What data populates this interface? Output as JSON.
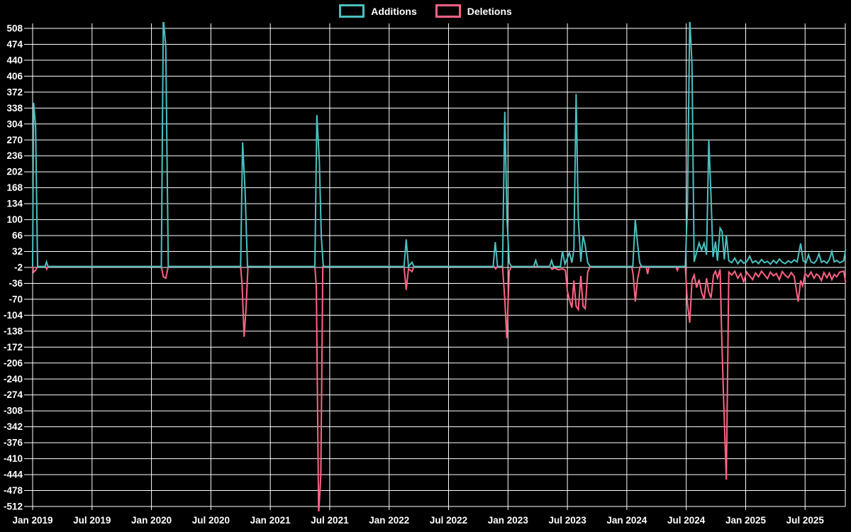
{
  "chart_data": {
    "type": "line",
    "title": "",
    "legend_position": "top",
    "background_color": "#000000",
    "grid_color": "#ffffff",
    "text_color": "#ffffff",
    "grid": true,
    "x_unit": "months since Jan 2019 (weekly git additions/deletions)",
    "x_tick_labels": [
      "Jan 2019",
      "Jul 2019",
      "Jan 2020",
      "Jul 2020",
      "Jan 2021",
      "Jul 2021",
      "Jan 2022",
      "Jul 2022",
      "Jan 2023",
      "Jul 2023",
      "Jan 2024",
      "Jul 2024",
      "Jan 2025",
      "Jul 2025"
    ],
    "x_tick_months": [
      0,
      6,
      12,
      18,
      24,
      30,
      36,
      42,
      48,
      54,
      60,
      66,
      72,
      78
    ],
    "y_ticks": [
      508,
      474,
      440,
      406,
      372,
      338,
      304,
      270,
      236,
      202,
      168,
      134,
      100,
      66,
      32,
      -2,
      -36,
      -70,
      -104,
      -138,
      -172,
      -206,
      -240,
      -274,
      -308,
      -342,
      -376,
      -410,
      -444,
      -478,
      -512
    ],
    "xlim": [
      -0.43,
      82.35
    ],
    "ylim": [
      -522.6,
      518.6
    ],
    "series": [
      {
        "name": "Deletions",
        "color": "#ff6384",
        "points": [
          [
            0.0,
            0
          ],
          [
            0.1,
            -12
          ],
          [
            0.3,
            -8
          ],
          [
            0.5,
            0
          ],
          [
            1.3,
            0
          ],
          [
            1.42,
            -6
          ],
          [
            1.55,
            0
          ],
          [
            13.0,
            0
          ],
          [
            13.2,
            -22
          ],
          [
            13.45,
            -25
          ],
          [
            13.7,
            0
          ],
          [
            21.0,
            0
          ],
          [
            21.15,
            -40
          ],
          [
            21.35,
            -150
          ],
          [
            21.55,
            -90
          ],
          [
            21.75,
            0
          ],
          [
            28.5,
            0
          ],
          [
            28.65,
            -45
          ],
          [
            28.88,
            -530
          ],
          [
            29.1,
            -445
          ],
          [
            29.3,
            0
          ],
          [
            37.5,
            0
          ],
          [
            37.72,
            -50
          ],
          [
            37.95,
            -5
          ],
          [
            38.3,
            -11
          ],
          [
            38.5,
            0
          ],
          [
            46.6,
            0
          ],
          [
            46.75,
            -5
          ],
          [
            46.9,
            0
          ],
          [
            47.45,
            0
          ],
          [
            47.68,
            -70
          ],
          [
            47.88,
            -153
          ],
          [
            48.13,
            -10
          ],
          [
            48.35,
            0
          ],
          [
            52.2,
            0
          ],
          [
            52.45,
            -6
          ],
          [
            52.7,
            -3
          ],
          [
            53.1,
            -7
          ],
          [
            53.5,
            -5
          ],
          [
            53.8,
            -8
          ],
          [
            54.0,
            -53
          ],
          [
            54.2,
            -71
          ],
          [
            54.45,
            -88
          ],
          [
            54.65,
            -30
          ],
          [
            54.88,
            -85
          ],
          [
            55.1,
            -92
          ],
          [
            55.35,
            -20
          ],
          [
            55.58,
            -85
          ],
          [
            55.8,
            -90
          ],
          [
            56.05,
            -12
          ],
          [
            56.3,
            0
          ],
          [
            60.5,
            0
          ],
          [
            60.65,
            -20
          ],
          [
            60.85,
            -75
          ],
          [
            61.1,
            -25
          ],
          [
            61.35,
            0
          ],
          [
            61.95,
            0
          ],
          [
            62.1,
            -16
          ],
          [
            62.25,
            0
          ],
          [
            64.95,
            0
          ],
          [
            65.1,
            -8
          ],
          [
            65.25,
            0
          ],
          [
            65.9,
            0
          ],
          [
            66.12,
            -79
          ],
          [
            66.35,
            -120
          ],
          [
            66.58,
            -30
          ],
          [
            66.8,
            -18
          ],
          [
            67.05,
            -45
          ],
          [
            67.3,
            -28
          ],
          [
            67.55,
            -55
          ],
          [
            67.8,
            -70
          ],
          [
            68.05,
            -25
          ],
          [
            68.28,
            -55
          ],
          [
            68.5,
            -67
          ],
          [
            68.75,
            -18
          ],
          [
            68.95,
            -10
          ],
          [
            69.15,
            -25
          ],
          [
            69.42,
            -6
          ],
          [
            69.6,
            -160
          ],
          [
            69.8,
            -300
          ],
          [
            70.05,
            -455
          ],
          [
            70.3,
            -12
          ],
          [
            70.6,
            -18
          ],
          [
            70.9,
            -10
          ],
          [
            71.2,
            -25
          ],
          [
            71.5,
            -15
          ],
          [
            71.8,
            -33
          ],
          [
            72.1,
            -12
          ],
          [
            72.4,
            -20
          ],
          [
            72.7,
            -28
          ],
          [
            73.0,
            -14
          ],
          [
            73.3,
            -22
          ],
          [
            73.6,
            -10
          ],
          [
            73.9,
            -18
          ],
          [
            74.2,
            -26
          ],
          [
            74.5,
            -12
          ],
          [
            74.8,
            -20
          ],
          [
            75.1,
            -15
          ],
          [
            75.4,
            -28
          ],
          [
            75.7,
            -11
          ],
          [
            76.0,
            -19
          ],
          [
            76.3,
            -24
          ],
          [
            76.6,
            -13
          ],
          [
            76.9,
            -21
          ],
          [
            77.3,
            -75
          ],
          [
            77.55,
            -30
          ],
          [
            77.75,
            -41
          ],
          [
            78.0,
            -15
          ],
          [
            78.3,
            -22
          ],
          [
            78.6,
            -12
          ],
          [
            78.9,
            -25
          ],
          [
            79.15,
            -16
          ],
          [
            79.4,
            -20
          ],
          [
            79.65,
            -30
          ],
          [
            79.9,
            -13
          ],
          [
            80.2,
            -24
          ],
          [
            80.45,
            -14
          ],
          [
            80.7,
            -28
          ],
          [
            80.95,
            -17
          ],
          [
            81.2,
            -22
          ],
          [
            81.5,
            -12
          ],
          [
            81.9,
            -10
          ],
          [
            82.1,
            -35
          ]
        ]
      },
      {
        "name": "Additions",
        "color": "#4bc0c0",
        "points": [
          [
            0.0,
            0
          ],
          [
            0.1,
            349
          ],
          [
            0.3,
            300
          ],
          [
            0.5,
            0
          ],
          [
            1.25,
            0
          ],
          [
            1.4,
            10
          ],
          [
            1.55,
            0
          ],
          [
            13.0,
            0
          ],
          [
            13.2,
            530
          ],
          [
            13.45,
            468
          ],
          [
            13.7,
            0
          ],
          [
            21.0,
            0
          ],
          [
            21.2,
            265
          ],
          [
            21.45,
            165
          ],
          [
            21.7,
            0
          ],
          [
            28.5,
            0
          ],
          [
            28.7,
            323
          ],
          [
            28.95,
            225
          ],
          [
            29.15,
            63
          ],
          [
            29.35,
            0
          ],
          [
            37.5,
            0
          ],
          [
            37.72,
            58
          ],
          [
            37.95,
            0
          ],
          [
            38.3,
            9
          ],
          [
            38.5,
            0
          ],
          [
            46.5,
            0
          ],
          [
            46.72,
            52
          ],
          [
            46.95,
            0
          ],
          [
            47.45,
            0
          ],
          [
            47.68,
            330
          ],
          [
            47.9,
            100
          ],
          [
            48.13,
            8
          ],
          [
            48.35,
            0
          ],
          [
            50.6,
            0
          ],
          [
            50.8,
            13
          ],
          [
            51.0,
            0
          ],
          [
            52.2,
            0
          ],
          [
            52.4,
            13
          ],
          [
            52.6,
            0
          ],
          [
            53.3,
            0
          ],
          [
            53.5,
            33
          ],
          [
            53.75,
            5
          ],
          [
            54.0,
            18
          ],
          [
            54.2,
            30
          ],
          [
            54.45,
            8
          ],
          [
            54.65,
            35
          ],
          [
            54.88,
            368
          ],
          [
            55.1,
            100
          ],
          [
            55.35,
            10
          ],
          [
            55.58,
            66
          ],
          [
            55.8,
            45
          ],
          [
            56.05,
            8
          ],
          [
            56.3,
            0
          ],
          [
            60.6,
            0
          ],
          [
            60.85,
            100
          ],
          [
            61.05,
            55
          ],
          [
            61.3,
            8
          ],
          [
            61.5,
            0
          ],
          [
            65.9,
            0
          ],
          [
            66.12,
            130
          ],
          [
            66.35,
            530
          ],
          [
            66.58,
            430
          ],
          [
            66.8,
            10
          ],
          [
            67.05,
            30
          ],
          [
            67.3,
            50
          ],
          [
            67.55,
            35
          ],
          [
            67.8,
            50
          ],
          [
            68.05,
            25
          ],
          [
            68.28,
            270
          ],
          [
            68.5,
            150
          ],
          [
            68.7,
            20
          ],
          [
            68.95,
            53
          ],
          [
            69.15,
            12
          ],
          [
            69.42,
            82
          ],
          [
            69.62,
            75
          ],
          [
            69.85,
            15
          ],
          [
            70.05,
            65
          ],
          [
            70.3,
            12
          ],
          [
            70.6,
            8
          ],
          [
            70.9,
            18
          ],
          [
            71.2,
            6
          ],
          [
            71.5,
            14
          ],
          [
            71.8,
            7
          ],
          [
            72.1,
            10
          ],
          [
            72.4,
            22
          ],
          [
            72.7,
            8
          ],
          [
            73.0,
            12
          ],
          [
            73.3,
            6
          ],
          [
            73.6,
            15
          ],
          [
            73.9,
            8
          ],
          [
            74.2,
            11
          ],
          [
            74.5,
            5
          ],
          [
            74.8,
            13
          ],
          [
            75.1,
            7
          ],
          [
            75.4,
            16
          ],
          [
            75.7,
            9
          ],
          [
            76.0,
            6
          ],
          [
            76.3,
            12
          ],
          [
            76.6,
            8
          ],
          [
            76.9,
            14
          ],
          [
            77.2,
            10
          ],
          [
            77.55,
            49
          ],
          [
            77.8,
            12
          ],
          [
            78.1,
            8
          ],
          [
            78.35,
            25
          ],
          [
            78.6,
            10
          ],
          [
            78.9,
            7
          ],
          [
            79.15,
            13
          ],
          [
            79.4,
            27
          ],
          [
            79.65,
            9
          ],
          [
            79.9,
            12
          ],
          [
            80.2,
            7
          ],
          [
            80.45,
            15
          ],
          [
            80.7,
            32
          ],
          [
            80.95,
            10
          ],
          [
            81.2,
            13
          ],
          [
            81.5,
            8
          ],
          [
            81.9,
            12
          ],
          [
            82.1,
            37
          ]
        ]
      }
    ],
    "legend": [
      "Additions",
      "Deletions"
    ]
  }
}
